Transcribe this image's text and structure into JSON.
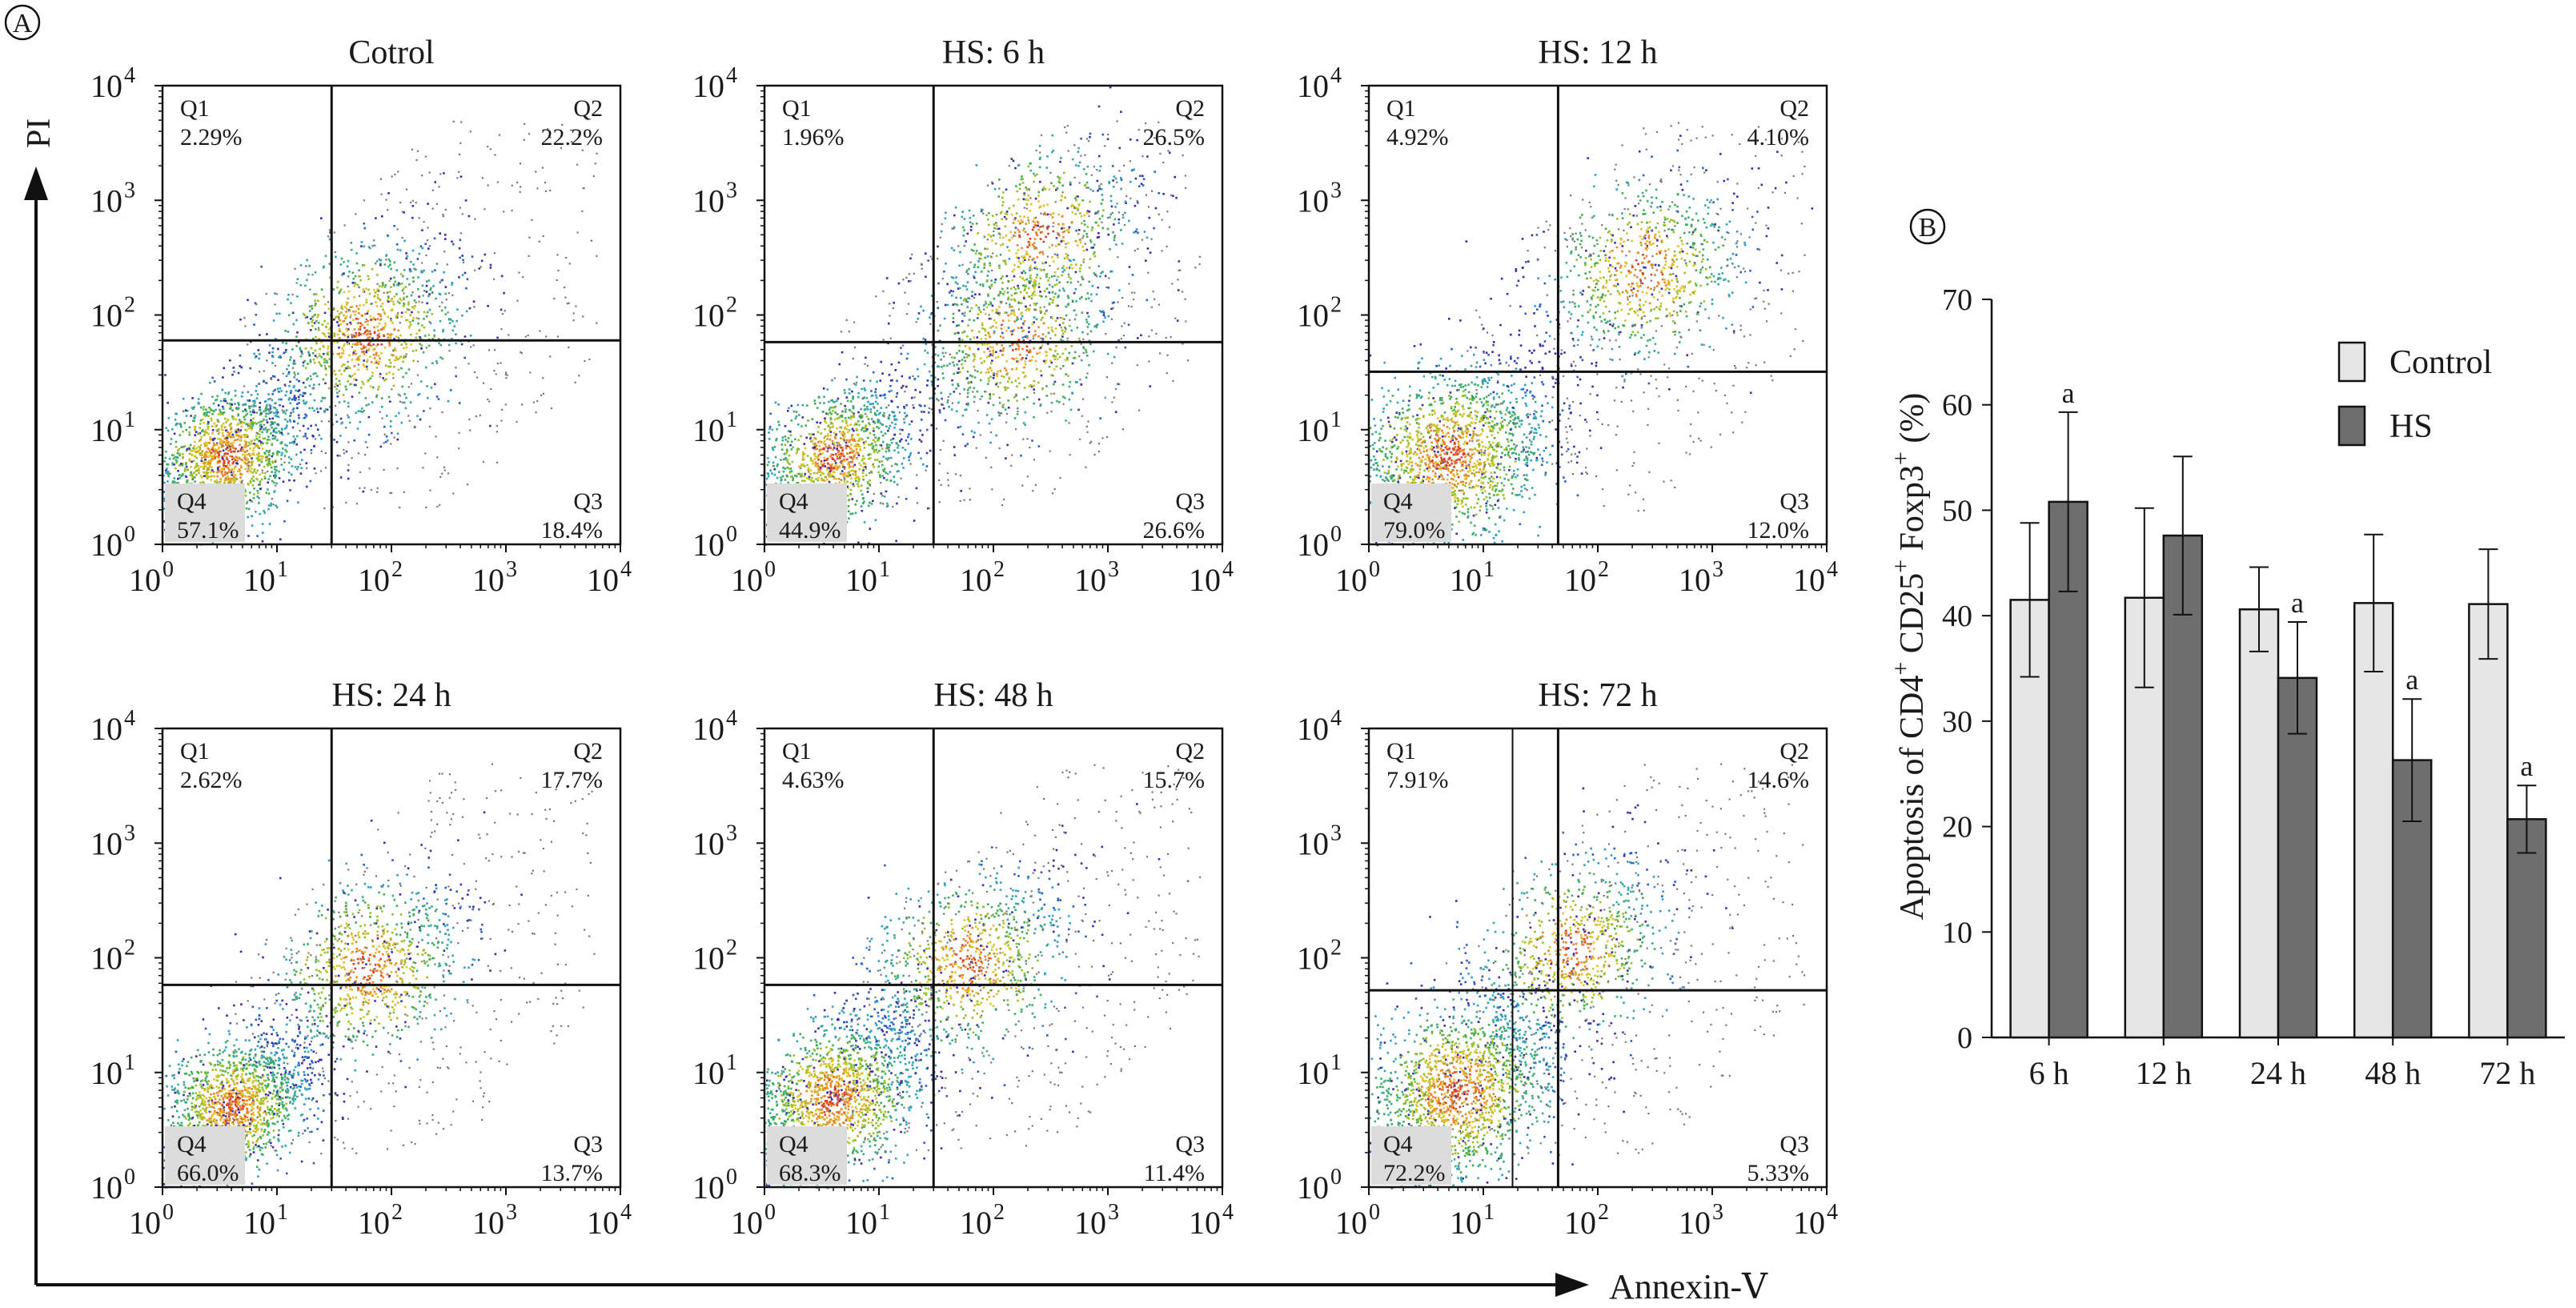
{
  "panel_a_label": "A",
  "panel_b_label": "B",
  "y_axis_label": "PI",
  "x_axis_label": "Annexin-Ⅴ",
  "chart_data": [
    {
      "type": "scatter",
      "title": "Cotrol",
      "x_scale": "log",
      "y_scale": "log",
      "xlim": [
        1,
        10000
      ],
      "ylim": [
        1,
        10000
      ],
      "gate_x": 30,
      "gate_y": 60,
      "quadrants": {
        "Q1": "2.29%",
        "Q2": "22.2%",
        "Q3": "18.4%",
        "Q4": "57.1%"
      },
      "clusters": [
        {
          "x": 3.5,
          "y": 6,
          "spread_log": 0.35,
          "weight": 0.6
        },
        {
          "x": 60,
          "y": 70,
          "spread_log": 0.45,
          "weight": 0.4
        }
      ]
    },
    {
      "type": "scatter",
      "title": "HS: 6 h",
      "x_scale": "log",
      "y_scale": "log",
      "xlim": [
        1,
        10000
      ],
      "ylim": [
        1,
        10000
      ],
      "gate_x": 30,
      "gate_y": 58,
      "quadrants": {
        "Q1": "1.96%",
        "Q2": "26.5%",
        "Q3": "26.6%",
        "Q4": "44.9%"
      },
      "clusters": [
        {
          "x": 4,
          "y": 6,
          "spread_log": 0.35,
          "weight": 0.45
        },
        {
          "x": 150,
          "y": 60,
          "spread_log": 0.45,
          "weight": 0.3
        },
        {
          "x": 250,
          "y": 500,
          "spread_log": 0.45,
          "weight": 0.25
        }
      ]
    },
    {
      "type": "scatter",
      "title": "HS: 12 h",
      "x_scale": "log",
      "y_scale": "log",
      "xlim": [
        1,
        10000
      ],
      "ylim": [
        1,
        10000
      ],
      "gate_x": 45,
      "gate_y": 32,
      "quadrants": {
        "Q1": "4.92%",
        "Q2": "4.10%",
        "Q3": "12.0%",
        "Q4": "79.0%"
      },
      "clusters": [
        {
          "x": 5,
          "y": 6,
          "spread_log": 0.45,
          "weight": 0.7
        },
        {
          "x": 250,
          "y": 250,
          "spread_log": 0.45,
          "weight": 0.3
        }
      ]
    },
    {
      "type": "scatter",
      "title": "HS: 24 h",
      "x_scale": "log",
      "y_scale": "log",
      "xlim": [
        1,
        10000
      ],
      "ylim": [
        1,
        10000
      ],
      "gate_x": 30,
      "gate_y": 58,
      "quadrants": {
        "Q1": "2.62%",
        "Q2": "17.7%",
        "Q3": "13.7%",
        "Q4": "66.0%"
      },
      "clusters": [
        {
          "x": 4,
          "y": 5,
          "spread_log": 0.35,
          "weight": 0.65
        },
        {
          "x": 60,
          "y": 80,
          "spread_log": 0.45,
          "weight": 0.35
        }
      ]
    },
    {
      "type": "scatter",
      "title": "HS: 48 h",
      "x_scale": "log",
      "y_scale": "log",
      "xlim": [
        1,
        10000
      ],
      "ylim": [
        1,
        10000
      ],
      "gate_x": 30,
      "gate_y": 58,
      "quadrants": {
        "Q1": "4.63%",
        "Q2": "15.7%",
        "Q3": "11.4%",
        "Q4": "68.3%"
      },
      "clusters": [
        {
          "x": 4,
          "y": 6,
          "spread_log": 0.4,
          "weight": 0.65
        },
        {
          "x": 60,
          "y": 90,
          "spread_log": 0.45,
          "weight": 0.35
        }
      ]
    },
    {
      "type": "scatter",
      "title": "HS: 72 h",
      "x_scale": "log",
      "y_scale": "log",
      "xlim": [
        1,
        10000
      ],
      "ylim": [
        1,
        10000
      ],
      "gate_x": 45,
      "gate_y": 52,
      "gate_x2": 18,
      "quadrants": {
        "Q1": "7.91%",
        "Q2": "14.6%",
        "Q3": "5.33%",
        "Q4": "72.2%"
      },
      "clusters": [
        {
          "x": 6,
          "y": 7,
          "spread_log": 0.45,
          "weight": 0.7
        },
        {
          "x": 60,
          "y": 120,
          "spread_log": 0.45,
          "weight": 0.3
        }
      ]
    },
    {
      "type": "bar",
      "categories": [
        "6 h",
        "12 h",
        "24 h",
        "48 h",
        "72 h"
      ],
      "series": [
        {
          "name": "Control",
          "color": "#e6e6e6",
          "values": [
            41.5,
            41.7,
            40.6,
            41.2,
            41.1
          ],
          "errors": [
            7.3,
            8.5,
            4.0,
            6.5,
            5.2
          ],
          "significance": [
            "",
            "",
            "",
            "",
            ""
          ]
        },
        {
          "name": "HS",
          "color": "#6e6e6e",
          "values": [
            50.8,
            47.6,
            34.1,
            26.3,
            20.7
          ],
          "errors": [
            8.5,
            7.5,
            5.3,
            5.8,
            3.2
          ],
          "significance": [
            "a",
            "",
            "a",
            "a",
            "a"
          ]
        }
      ],
      "ylabel_parts": [
        "Apoptosis of CD4",
        "+",
        " CD25",
        "+",
        " Foxp3",
        "+",
        "  (%)"
      ],
      "ylim": [
        0,
        70
      ],
      "yticks": [
        0,
        10,
        20,
        30,
        40,
        50,
        60,
        70
      ],
      "legend": "top-right"
    }
  ]
}
